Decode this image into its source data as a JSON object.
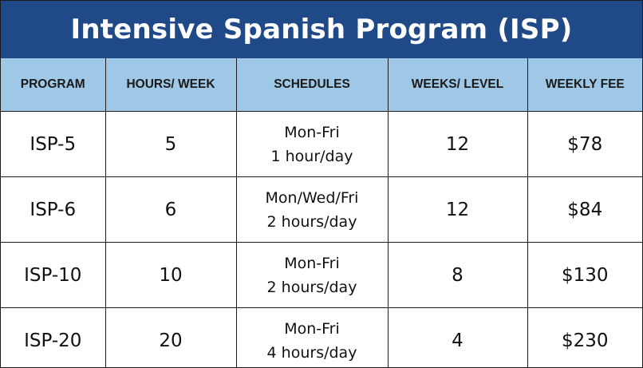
{
  "title": "Intensive Spanish Program (ISP)",
  "headers": [
    "PROGRAM",
    "HOURS/ WEEK",
    "SCHEDULES",
    "WEEKS/ LEVEL",
    "WEEKLY FEE"
  ],
  "rows": [
    {
      "program": "ISP-5",
      "hours": "5",
      "schedule_days": "Mon-Fri",
      "schedule_hours": "1 hour/day",
      "weeks": "12",
      "fee": "$78"
    },
    {
      "program": "ISP-6",
      "hours": "6",
      "schedule_days": "Mon/Wed/Fri",
      "schedule_hours": "2 hours/day",
      "weeks": "12",
      "fee": "$84"
    },
    {
      "program": "ISP-10",
      "hours": "10",
      "schedule_days": "Mon-Fri",
      "schedule_hours": "2 hours/day",
      "weeks": "8",
      "fee": "$130"
    },
    {
      "program": "ISP-20",
      "hours": "20",
      "schedule_days": "Mon-Fri",
      "schedule_hours": "4 hours/day",
      "weeks": "4",
      "fee": "$230"
    }
  ],
  "colors": {
    "title_bg": "#1f4a87",
    "header_bg": "#9ec8e6",
    "border": "#1b1b1b"
  }
}
